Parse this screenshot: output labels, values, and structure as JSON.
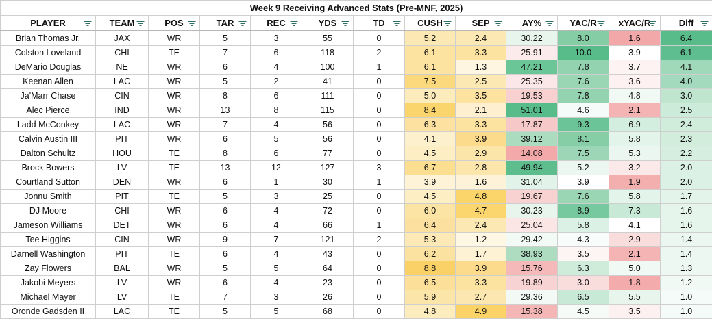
{
  "title": "Week 9 Receiving Advanced Stats (Pre-MNF, 2025)",
  "columns": [
    "PLAYER",
    "TEAM",
    "POS",
    "TAR",
    "REC",
    "YDS",
    "TD",
    "CUSH",
    "SEP",
    "AY%",
    "YAC/R",
    "xYAC/R",
    "Diff"
  ],
  "filter_icon": "filter-icon",
  "rows": [
    {
      "player": "Brian Thomas Jr.",
      "team": "JAX",
      "pos": "WR",
      "tar": "5",
      "rec": "3",
      "yds": "55",
      "td": "0",
      "cush": "5.2",
      "sep": "2.4",
      "ay": "30.22",
      "yac": "8.0",
      "xyac": "1.6",
      "diff": "6.4",
      "colors": {
        "cush": "#fce8b2",
        "sep": "#fce8b2",
        "ay": "#e7f5ec",
        "yac": "#85cda4",
        "xyac": "#f2a8a8",
        "diff": "#57bb8a"
      }
    },
    {
      "player": "Colston Loveland",
      "team": "CHI",
      "pos": "TE",
      "tar": "7",
      "rec": "6",
      "yds": "118",
      "td": "2",
      "cush": "6.1",
      "sep": "3.3",
      "ay": "25.91",
      "yac": "10.0",
      "xyac": "3.9",
      "diff": "6.1",
      "colors": {
        "cush": "#fce3a0",
        "sep": "#fce3a0",
        "ay": "#fcebeb",
        "yac": "#57bb8a",
        "xyac": "#ffffff",
        "diff": "#5fbe8f"
      }
    },
    {
      "player": "DeMario Douglas",
      "team": "NE",
      "pos": "WR",
      "tar": "6",
      "rec": "4",
      "yds": "100",
      "td": "1",
      "cush": "6.1",
      "sep": "1.3",
      "ay": "47.21",
      "yac": "7.8",
      "xyac": "3.7",
      "diff": "4.1",
      "colors": {
        "cush": "#fce3a0",
        "sep": "#fef6e0",
        "ay": "#6ac597",
        "yac": "#94d3b0",
        "xyac": "#fdf3f3",
        "diff": "#a0d8ba"
      }
    },
    {
      "player": "Keenan Allen",
      "team": "LAC",
      "pos": "WR",
      "tar": "5",
      "rec": "2",
      "yds": "41",
      "td": "0",
      "cush": "7.5",
      "sep": "2.5",
      "ay": "25.35",
      "yac": "7.6",
      "xyac": "3.6",
      "diff": "4.0",
      "colors": {
        "cush": "#fbd97c",
        "sep": "#fce8b2",
        "ay": "#fbe7e7",
        "yac": "#9ad5b4",
        "xyac": "#fdf1f1",
        "diff": "#a3d9bc"
      }
    },
    {
      "player": "Ja'Marr Chase",
      "team": "CIN",
      "pos": "WR",
      "tar": "8",
      "rec": "6",
      "yds": "111",
      "td": "0",
      "cush": "5.0",
      "sep": "3.5",
      "ay": "19.53",
      "yac": "7.8",
      "xyac": "4.8",
      "diff": "3.0",
      "colors": {
        "cush": "#fcebbb",
        "sep": "#fde2a0",
        "ay": "#f8d0d0",
        "yac": "#94d3b0",
        "xyac": "#f0f9f4",
        "diff": "#bfe5cf"
      }
    },
    {
      "player": "Alec Pierce",
      "team": "IND",
      "pos": "WR",
      "tar": "13",
      "rec": "8",
      "yds": "115",
      "td": "0",
      "cush": "8.4",
      "sep": "2.1",
      "ay": "51.01",
      "yac": "4.6",
      "xyac": "2.1",
      "diff": "2.5",
      "colors": {
        "cush": "#fad46c",
        "sep": "#fdefd0",
        "ay": "#57bb8a",
        "yac": "#f5fbf8",
        "xyac": "#f4b4b4",
        "diff": "#cdebd9"
      }
    },
    {
      "player": "Ladd McConkey",
      "team": "LAC",
      "pos": "WR",
      "tar": "7",
      "rec": "4",
      "yds": "56",
      "td": "0",
      "cush": "6.3",
      "sep": "3.3",
      "ay": "17.87",
      "yac": "9.3",
      "xyac": "6.9",
      "diff": "2.4",
      "colors": {
        "cush": "#fce1a0",
        "sep": "#fce3a0",
        "ay": "#f7c8c8",
        "yac": "#6bc497",
        "xyac": "#d3eedf",
        "diff": "#d0ecdb"
      }
    },
    {
      "player": "Calvin Austin III",
      "team": "PIT",
      "pos": "WR",
      "tar": "6",
      "rec": "5",
      "yds": "56",
      "td": "0",
      "cush": "4.1",
      "sep": "3.9",
      "ay": "39.12",
      "yac": "8.1",
      "xyac": "5.8",
      "diff": "2.3",
      "colors": {
        "cush": "#fdf0cc",
        "sep": "#fcdb8c",
        "ay": "#abdcc0",
        "yac": "#86cea6",
        "xyac": "#e3f4ea",
        "diff": "#d3eddd"
      }
    },
    {
      "player": "Dalton Schultz",
      "team": "HOU",
      "pos": "TE",
      "tar": "8",
      "rec": "6",
      "yds": "77",
      "td": "0",
      "cush": "4.5",
      "sep": "2.9",
      "ay": "14.08",
      "yac": "7.5",
      "xyac": "5.3",
      "diff": "2.2",
      "colors": {
        "cush": "#fdeec4",
        "sep": "#fce5a8",
        "ay": "#f3a9a9",
        "yac": "#9dd6b6",
        "xyac": "#eaf6ef",
        "diff": "#d6eee0"
      }
    },
    {
      "player": "Brock Bowers",
      "team": "LV",
      "pos": "TE",
      "tar": "13",
      "rec": "12",
      "yds": "127",
      "td": "3",
      "cush": "6.7",
      "sep": "2.8",
      "ay": "49.94",
      "yac": "5.2",
      "xyac": "3.2",
      "diff": "2.0",
      "colors": {
        "cush": "#fbde90",
        "sep": "#fce6ac",
        "ay": "#5dbd8d",
        "yac": "#ebf7f0",
        "xyac": "#fbe9e9",
        "diff": "#dcf1e5"
      }
    },
    {
      "player": "Courtland Sutton",
      "team": "DEN",
      "pos": "WR",
      "tar": "6",
      "rec": "1",
      "yds": "30",
      "td": "1",
      "cush": "3.9",
      "sep": "1.6",
      "ay": "31.04",
      "yac": "3.9",
      "xyac": "1.9",
      "diff": "2.0",
      "colors": {
        "cush": "#fef3d6",
        "sep": "#fef3d8",
        "ay": "#e2f3e9",
        "yac": "#ffffff",
        "xyac": "#f3aeae",
        "diff": "#dcf1e5"
      }
    },
    {
      "player": "Jonnu Smith",
      "team": "PIT",
      "pos": "TE",
      "tar": "5",
      "rec": "3",
      "yds": "25",
      "td": "0",
      "cush": "4.5",
      "sep": "4.8",
      "ay": "19.67",
      "yac": "7.6",
      "xyac": "5.8",
      "diff": "1.7",
      "colors": {
        "cush": "#fdeec4",
        "sep": "#fbd46a",
        "ay": "#f8d1d1",
        "yac": "#9ad5b4",
        "xyac": "#e3f4ea",
        "diff": "#e3f4ea"
      }
    },
    {
      "player": "DJ Moore",
      "team": "CHI",
      "pos": "WR",
      "tar": "6",
      "rec": "4",
      "yds": "72",
      "td": "0",
      "cush": "6.0",
      "sep": "4.7",
      "ay": "30.23",
      "yac": "8.9",
      "xyac": "7.3",
      "diff": "1.6",
      "colors": {
        "cush": "#fce4a4",
        "sep": "#fbd56e",
        "ay": "#e7f5ec",
        "yac": "#76c89e",
        "xyac": "#c8e9d6",
        "diff": "#e6f5ec"
      }
    },
    {
      "player": "Jameson Williams",
      "team": "DET",
      "pos": "WR",
      "tar": "6",
      "rec": "4",
      "yds": "66",
      "td": "1",
      "cush": "6.4",
      "sep": "2.4",
      "ay": "25.04",
      "yac": "5.8",
      "xyac": "4.1",
      "diff": "1.6",
      "colors": {
        "cush": "#fce0a0",
        "sep": "#fce8b2",
        "ay": "#fbe5e5",
        "yac": "#dcf1e5",
        "xyac": "#ffffff",
        "diff": "#e6f5ec"
      }
    },
    {
      "player": "Tee Higgins",
      "team": "CIN",
      "pos": "WR",
      "tar": "9",
      "rec": "7",
      "yds": "121",
      "td": "2",
      "cush": "5.3",
      "sep": "1.2",
      "ay": "29.42",
      "yac": "4.3",
      "xyac": "2.9",
      "diff": "1.4",
      "colors": {
        "cush": "#fce9b6",
        "sep": "#fef7e4",
        "ay": "#f2faf5",
        "yac": "#f8fcfa",
        "xyac": "#f9dcdc",
        "diff": "#ebf7f0"
      }
    },
    {
      "player": "Darnell Washington",
      "team": "PIT",
      "pos": "TE",
      "tar": "6",
      "rec": "4",
      "yds": "43",
      "td": "0",
      "cush": "6.2",
      "sep": "1.7",
      "ay": "38.93",
      "yac": "3.5",
      "xyac": "2.1",
      "diff": "1.4",
      "colors": {
        "cush": "#fce2a0",
        "sep": "#fef2d4",
        "ay": "#addcc1",
        "yac": "#fdf4f4",
        "xyac": "#f4b4b4",
        "diff": "#ebf7f0"
      }
    },
    {
      "player": "Zay Flowers",
      "team": "BAL",
      "pos": "WR",
      "tar": "5",
      "rec": "5",
      "yds": "64",
      "td": "0",
      "cush": "8.8",
      "sep": "3.9",
      "ay": "15.76",
      "yac": "6.3",
      "xyac": "5.0",
      "diff": "1.3",
      "colors": {
        "cush": "#fad166",
        "sep": "#fcdb8c",
        "ay": "#f5b9b9",
        "yac": "#cfecdb",
        "xyac": "#f0f9f4",
        "diff": "#edf8f2"
      }
    },
    {
      "player": "Jakobi Meyers",
      "team": "LV",
      "pos": "WR",
      "tar": "6",
      "rec": "4",
      "yds": "23",
      "td": "0",
      "cush": "6.5",
      "sep": "3.3",
      "ay": "19.89",
      "yac": "3.0",
      "xyac": "1.8",
      "diff": "1.2",
      "colors": {
        "cush": "#fcdf98",
        "sep": "#fce3a0",
        "ay": "#f8d3d3",
        "yac": "#f9dcdc",
        "xyac": "#f3abab",
        "diff": "#f0f9f4"
      }
    },
    {
      "player": "Michael Mayer",
      "team": "LV",
      "pos": "TE",
      "tar": "7",
      "rec": "3",
      "yds": "26",
      "td": "0",
      "cush": "5.9",
      "sep": "2.7",
      "ay": "29.36",
      "yac": "6.5",
      "xyac": "5.5",
      "diff": "1.0",
      "colors": {
        "cush": "#fce5a8",
        "sep": "#fce7b0",
        "ay": "#f3faf6",
        "yac": "#c8e9d6",
        "xyac": "#e7f5ec",
        "diff": "#f5fbf8"
      }
    },
    {
      "player": "Oronde Gadsden II",
      "team": "LAC",
      "pos": "TE",
      "tar": "5",
      "rec": "5",
      "yds": "68",
      "td": "0",
      "cush": "4.8",
      "sep": "4.9",
      "ay": "15.38",
      "yac": "4.5",
      "xyac": "3.5",
      "diff": "1.0",
      "colors": {
        "cush": "#fdecbe",
        "sep": "#fbd366",
        "ay": "#f5b6b6",
        "yac": "#f6fbf8",
        "xyac": "#fdf0f0",
        "diff": "#f5fbf8"
      }
    }
  ]
}
